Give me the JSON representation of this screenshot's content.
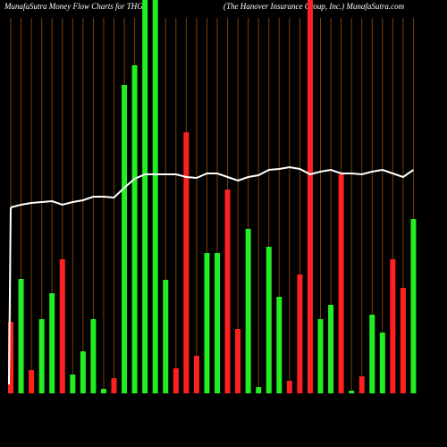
{
  "chart_data": {
    "type": "bar-line",
    "title": "MunafaSutra  Money Flow  Charts for THG",
    "subtitle": "(The   Hanover Insurance  Group, Inc.) MunafaSutra.com",
    "ylim": [
      0,
      440
    ],
    "grid": true,
    "grid_color": "#7a3e0a",
    "bars": {
      "name": "Money Flow",
      "values": [
        80,
        128,
        26,
        83,
        112,
        150,
        21,
        47,
        83,
        5,
        17,
        345,
        367,
        440,
        440,
        127,
        28,
        292,
        42,
        157,
        157,
        228,
        72,
        184,
        7,
        164,
        108,
        14,
        133,
        440,
        83,
        99,
        245,
        3,
        19,
        88,
        68,
        150,
        118,
        195
      ],
      "colors": [
        "#ff2020",
        "#22ee22",
        "#ff2020",
        "#22ee22",
        "#22ee22",
        "#ff2020",
        "#22ee22",
        "#22ee22",
        "#22ee22",
        "#22ee22",
        "#ff2020",
        "#22ee22",
        "#22ee22",
        "#22ee22",
        "#22ee22",
        "#22ee22",
        "#ff2020",
        "#ff2020",
        "#ff2020",
        "#22ee22",
        "#22ee22",
        "#ff2020",
        "#ff2020",
        "#22ee22",
        "#22ee22",
        "#22ee22",
        "#22ee22",
        "#ff2020",
        "#ff2020",
        "#ff2020",
        "#22ee22",
        "#22ee22",
        "#ff2020",
        "#22ee22",
        "#ff2020",
        "#22ee22",
        "#22ee22",
        "#ff2020",
        "#ff2020",
        "#22ee22"
      ]
    },
    "line": {
      "name": "Price",
      "color": "#ffffff",
      "values": [
        208,
        211,
        213,
        214,
        215,
        211,
        214,
        216,
        220,
        220,
        219,
        230,
        240,
        245,
        245,
        245,
        245,
        242,
        241,
        246,
        246,
        242,
        238,
        242,
        244,
        250,
        251,
        253,
        251,
        245,
        248,
        250,
        246,
        246,
        245,
        248,
        250,
        246,
        242,
        250
      ]
    }
  }
}
